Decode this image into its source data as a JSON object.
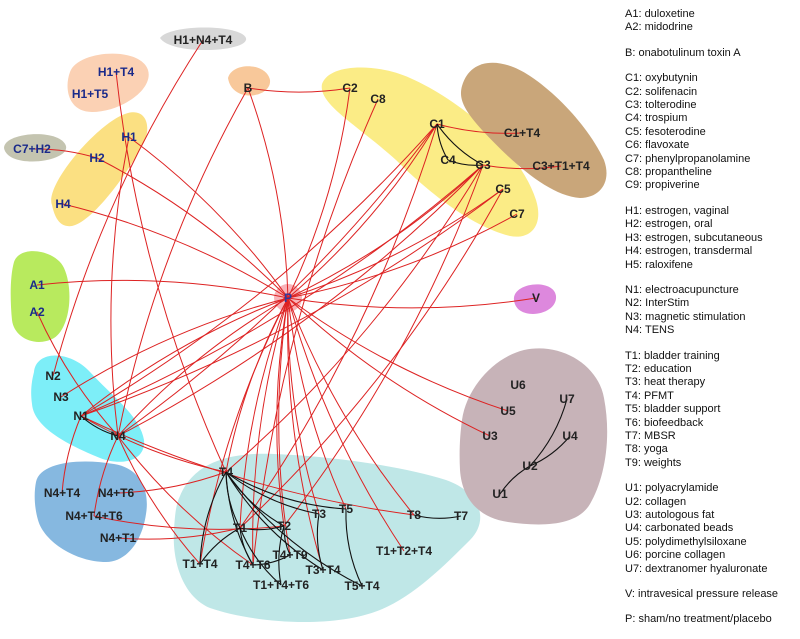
{
  "groups": [
    {
      "id": "A",
      "color": "#b8ea5e"
    },
    {
      "id": "B",
      "color": "#f8c89a"
    },
    {
      "id": "C",
      "color": "#fbec86"
    },
    {
      "id": "C-combo",
      "color": "#c9a67a"
    },
    {
      "id": "H",
      "color": "#fbe082"
    },
    {
      "id": "H-combo",
      "color": "#fbd1b4"
    },
    {
      "id": "H1+N4+T4-group",
      "color": "#d8d8d8"
    },
    {
      "id": "C7+H2-group",
      "color": "#c4c4b0"
    },
    {
      "id": "N",
      "color": "#7deef8"
    },
    {
      "id": "N-combo",
      "color": "#86b8e0"
    },
    {
      "id": "T",
      "color": "#bfe7e7"
    },
    {
      "id": "U",
      "color": "#c7b3b8"
    },
    {
      "id": "V",
      "color": "#dd88dd"
    },
    {
      "id": "P",
      "color": "#f8a0a8"
    }
  ],
  "nodes": [
    {
      "id": "P",
      "label": "P",
      "bold": true,
      "color": "#2e3a9e"
    },
    {
      "id": "A1",
      "label": "A1",
      "bold": true,
      "color": "#1a2a8a"
    },
    {
      "id": "A2",
      "label": "A2",
      "bold": true,
      "color": "#1a2a8a"
    },
    {
      "id": "B",
      "label": "B",
      "bold": true,
      "color": "#222222"
    },
    {
      "id": "C1",
      "label": "C1",
      "bold": true,
      "color": "#222222"
    },
    {
      "id": "C2",
      "label": "C2",
      "bold": true,
      "color": "#222222"
    },
    {
      "id": "C3",
      "label": "C3",
      "bold": true,
      "color": "#222222"
    },
    {
      "id": "C4",
      "label": "C4",
      "bold": true,
      "color": "#222222"
    },
    {
      "id": "C5",
      "label": "C5",
      "bold": true,
      "color": "#222222"
    },
    {
      "id": "C7",
      "label": "C7",
      "bold": true,
      "color": "#222222"
    },
    {
      "id": "C8",
      "label": "C8",
      "bold": true,
      "color": "#222222"
    },
    {
      "id": "C1+T4",
      "label": "C1+T4",
      "bold": true,
      "color": "#222222"
    },
    {
      "id": "C3+T1+T4",
      "label": "C3+T1+T4",
      "bold": true,
      "color": "#222222"
    },
    {
      "id": "H1",
      "label": "H1",
      "bold": true,
      "color": "#1a2a8a"
    },
    {
      "id": "H2",
      "label": "H2",
      "bold": true,
      "color": "#1a2a8a"
    },
    {
      "id": "H4",
      "label": "H4",
      "bold": true,
      "color": "#1a2a8a"
    },
    {
      "id": "H1+T4",
      "label": "H1+T4",
      "bold": true,
      "color": "#1a2a8a"
    },
    {
      "id": "H1+T5",
      "label": "H1+T5",
      "bold": true,
      "color": "#1a2a8a"
    },
    {
      "id": "H1+N4+T4",
      "label": "H1+N4+T4",
      "bold": true,
      "color": "#222222"
    },
    {
      "id": "C7+H2",
      "label": "C7+H2",
      "bold": true,
      "color": "#1a2a8a"
    },
    {
      "id": "N1",
      "label": "N1",
      "bold": true,
      "color": "#222222"
    },
    {
      "id": "N2",
      "label": "N2",
      "bold": true,
      "color": "#222222"
    },
    {
      "id": "N3",
      "label": "N3",
      "bold": true,
      "color": "#222222"
    },
    {
      "id": "N4",
      "label": "N4",
      "bold": true,
      "color": "#222222"
    },
    {
      "id": "N4+T4",
      "label": "N4+T4",
      "bold": true,
      "color": "#222222"
    },
    {
      "id": "N4+T6",
      "label": "N4+T6",
      "bold": true,
      "color": "#222222"
    },
    {
      "id": "N4+T4+T6",
      "label": "N4+T4+T6",
      "bold": true,
      "color": "#222222"
    },
    {
      "id": "N4+T1",
      "label": "N4+T1",
      "bold": true,
      "color": "#222222"
    },
    {
      "id": "T1",
      "label": "T1",
      "bold": true,
      "color": "#222222"
    },
    {
      "id": "T2",
      "label": "T2",
      "bold": true,
      "color": "#222222"
    },
    {
      "id": "T3",
      "label": "T3",
      "bold": true,
      "color": "#222222"
    },
    {
      "id": "T4",
      "label": "T4",
      "bold": true,
      "color": "#222222"
    },
    {
      "id": "T5",
      "label": "T5",
      "bold": true,
      "color": "#222222"
    },
    {
      "id": "T7",
      "label": "T7",
      "bold": true,
      "color": "#222222"
    },
    {
      "id": "T8",
      "label": "T8",
      "bold": true,
      "color": "#222222"
    },
    {
      "id": "T1+T4",
      "label": "T1+T4",
      "bold": true,
      "color": "#222222"
    },
    {
      "id": "T4+T6",
      "label": "T4+T6",
      "bold": true,
      "color": "#222222"
    },
    {
      "id": "T4+T9",
      "label": "T4+T9",
      "bold": true,
      "color": "#222222"
    },
    {
      "id": "T3+T4",
      "label": "T3+T4",
      "bold": true,
      "color": "#222222"
    },
    {
      "id": "T1+T4+T6",
      "label": "T1+T4+T6",
      "bold": true,
      "color": "#222222"
    },
    {
      "id": "T5+T4",
      "label": "T5+T4",
      "bold": true,
      "color": "#222222"
    },
    {
      "id": "T1+T2+T4",
      "label": "T1+T2+T4",
      "bold": true,
      "color": "#222222"
    },
    {
      "id": "U1",
      "label": "U1",
      "bold": true,
      "color": "#222222"
    },
    {
      "id": "U2",
      "label": "U2",
      "bold": true,
      "color": "#222222"
    },
    {
      "id": "U3",
      "label": "U3",
      "bold": true,
      "color": "#222222"
    },
    {
      "id": "U4",
      "label": "U4",
      "bold": true,
      "color": "#222222"
    },
    {
      "id": "U5",
      "label": "U5",
      "bold": true,
      "color": "#222222"
    },
    {
      "id": "U6",
      "label": "U6",
      "bold": true,
      "color": "#222222"
    },
    {
      "id": "U7",
      "label": "U7",
      "bold": true,
      "color": "#222222"
    },
    {
      "id": "V",
      "label": "V",
      "bold": true,
      "color": "#222222"
    }
  ],
  "edges": [
    [
      "P",
      "A1"
    ],
    [
      "P",
      "V"
    ],
    [
      "P",
      "U3"
    ],
    [
      "P",
      "U5"
    ],
    [
      "P",
      "H4"
    ],
    [
      "P",
      "H2"
    ],
    [
      "P",
      "B"
    ],
    [
      "P",
      "C1"
    ],
    [
      "P",
      "C3"
    ],
    [
      "P",
      "C5"
    ],
    [
      "P",
      "C7"
    ],
    [
      "P",
      "C2"
    ],
    [
      "P",
      "H1"
    ],
    [
      "P",
      "N1"
    ],
    [
      "P",
      "N4"
    ],
    [
      "P",
      "N3"
    ],
    [
      "P",
      "T1"
    ],
    [
      "P",
      "T2"
    ],
    [
      "P",
      "T3"
    ],
    [
      "P",
      "T4"
    ],
    [
      "P",
      "T5"
    ],
    [
      "P",
      "T8"
    ],
    [
      "P",
      "T1+T4"
    ],
    [
      "P",
      "T4+T6"
    ],
    [
      "P",
      "T1+T2+T4"
    ],
    [
      "P",
      "T3+T4"
    ],
    [
      "P",
      "T4+T9"
    ],
    [
      "N1",
      "C1"
    ],
    [
      "N1",
      "C3"
    ],
    [
      "N1",
      "C5"
    ],
    [
      "N4",
      "C3"
    ],
    [
      "N4",
      "C1"
    ],
    [
      "T4",
      "C3"
    ],
    [
      "T1",
      "C1"
    ],
    [
      "T2",
      "C3"
    ],
    [
      "T1",
      "C5"
    ],
    [
      "C1",
      "C1+T4"
    ],
    [
      "C3",
      "C3+T1+T4"
    ],
    [
      "B",
      "C2"
    ],
    [
      "B",
      "N4"
    ],
    [
      "C8",
      "T4+T6"
    ],
    [
      "H1",
      "N4"
    ],
    [
      "H2",
      "C7+H2"
    ],
    [
      "H1+T4",
      "T4"
    ],
    [
      "H1+N4+T4",
      "N2"
    ],
    [
      "A2",
      "N4"
    ],
    [
      "N1",
      "T8"
    ],
    [
      "N1",
      "T4"
    ],
    [
      "N1",
      "N4+T4"
    ],
    [
      "N4",
      "N4+T4+T6"
    ],
    [
      "N4",
      "T1+T4"
    ],
    [
      "N4",
      "T4+T6"
    ],
    [
      "N4+T4+T6",
      "T2"
    ],
    [
      "N4+T1",
      "T1"
    ],
    [
      "N4+T6",
      "T4"
    ]
  ],
  "inner_edges": [
    [
      "C1",
      "C3"
    ],
    [
      "C1",
      "C4"
    ],
    [
      "C4",
      "C3"
    ],
    [
      "N1",
      "N4"
    ],
    [
      "T4",
      "T1"
    ],
    [
      "T4",
      "T2"
    ],
    [
      "T4",
      "T3"
    ],
    [
      "T4",
      "T5"
    ],
    [
      "T4",
      "T1+T4"
    ],
    [
      "T4",
      "T4+T6"
    ],
    [
      "T4",
      "T3+T4"
    ],
    [
      "T4",
      "T5+T4"
    ],
    [
      "T1",
      "T2"
    ],
    [
      "T1",
      "T1+T4"
    ],
    [
      "T1",
      "T4+T6"
    ],
    [
      "T2",
      "T4+T9"
    ],
    [
      "T2",
      "T1+T4+T6"
    ],
    [
      "T3",
      "T3+T4"
    ],
    [
      "T5",
      "T5+T4"
    ],
    [
      "T8",
      "T7"
    ],
    [
      "T4+T6",
      "T4+T9"
    ],
    [
      "T1",
      "T1+T4+T6"
    ],
    [
      "U2",
      "U1"
    ],
    [
      "U2",
      "U4"
    ],
    [
      "U2",
      "U7"
    ]
  ],
  "legend": [
    [
      "A1: duloxetine",
      "A2: midodrine"
    ],
    [
      "B:   onabotulinum toxin A"
    ],
    [
      "C1: oxybutynin",
      "C2: solifenacin",
      "C3: tolterodine",
      "C4: trospium",
      "C5: fesoterodine",
      "C6: flavoxate",
      "C7: phenylpropanolamine",
      "C8: propantheline",
      "C9: propiverine"
    ],
    [
      "H1: estrogen, vaginal",
      "H2: estrogen, oral",
      "H3: estrogen, subcutaneous",
      "H4: estrogen, transdermal",
      "H5: raloxifene"
    ],
    [
      "N1: electroacupuncture",
      "N2: InterStim",
      "N3: magnetic stimulation",
      "N4: TENS"
    ],
    [
      "T1: bladder training",
      "T2: education",
      "T3: heat therapy",
      "T4: PFMT",
      "T5: bladder support",
      "T6: biofeedback",
      "T7: MBSR",
      "T8: yoga",
      "T9: weights"
    ],
    [
      "U1: polyacrylamide",
      "U2: collagen",
      "U3: autologous fat",
      "U4: carbonated beads",
      "U5: polydimethylsiloxane",
      "U6: porcine collagen",
      "U7: dextranomer hyaluronate"
    ],
    [
      "V:   intravesical pressure release"
    ],
    [
      "P:   sham/no treatment/placebo"
    ]
  ],
  "colors": {
    "edge": "#dd2222",
    "inner_edge": "#111111"
  }
}
